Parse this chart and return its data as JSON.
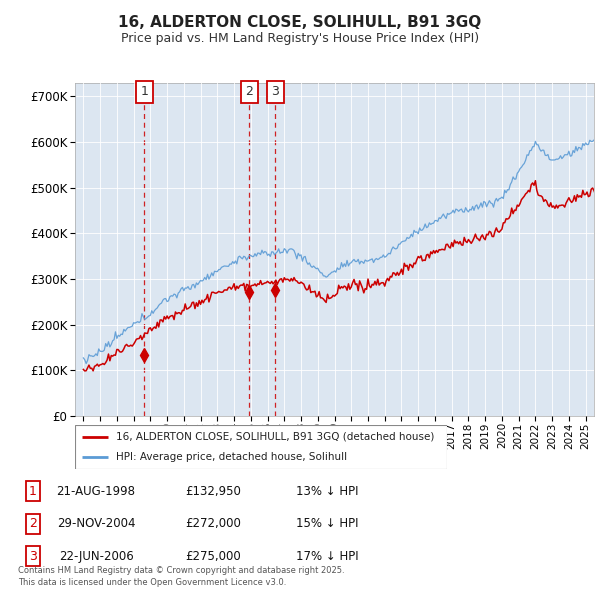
{
  "title": "16, ALDERTON CLOSE, SOLIHULL, B91 3GQ",
  "subtitle": "Price paid vs. HM Land Registry's House Price Index (HPI)",
  "ylabel_ticks": [
    "£0",
    "£100K",
    "£200K",
    "£300K",
    "£400K",
    "£500K",
    "£600K",
    "£700K"
  ],
  "ytick_values": [
    0,
    100000,
    200000,
    300000,
    400000,
    500000,
    600000,
    700000
  ],
  "ylim": [
    0,
    730000
  ],
  "xlim_start": 1994.5,
  "xlim_end": 2025.5,
  "legend_line1": "16, ALDERTON CLOSE, SOLIHULL, B91 3GQ (detached house)",
  "legend_line2": "HPI: Average price, detached house, Solihull",
  "transactions": [
    {
      "num": 1,
      "date": "21-AUG-1998",
      "price": "£132,950",
      "hpi": "13% ↓ HPI",
      "year": 1998.64
    },
    {
      "num": 2,
      "date": "29-NOV-2004",
      "price": "£272,000",
      "hpi": "15% ↓ HPI",
      "year": 2004.91
    },
    {
      "num": 3,
      "date": "22-JUN-2006",
      "price": "£275,000",
      "hpi": "17% ↓ HPI",
      "year": 2006.47
    }
  ],
  "transaction_prices": [
    132950,
    272000,
    275000
  ],
  "footnote": "Contains HM Land Registry data © Crown copyright and database right 2025.\nThis data is licensed under the Open Government Licence v3.0.",
  "red_color": "#cc0000",
  "blue_color": "#5b9bd5",
  "plot_bg_color": "#dce6f1",
  "marker_color": "#990000"
}
